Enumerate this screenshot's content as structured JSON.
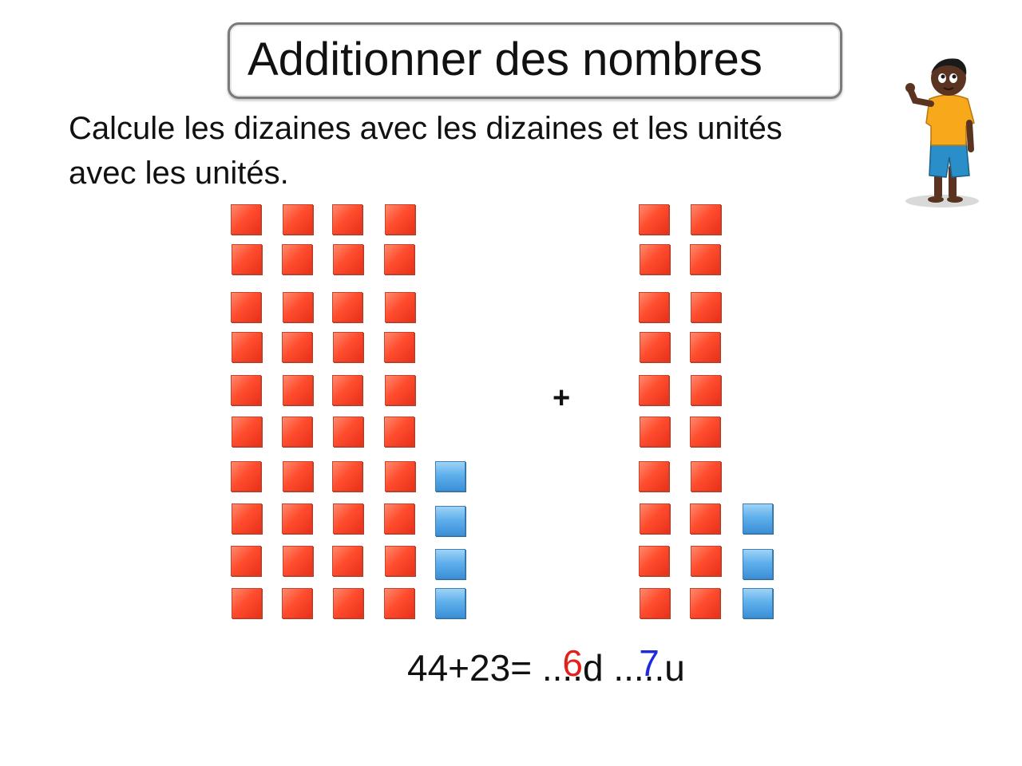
{
  "title": "Additionner des nombres",
  "instruction_lines": [
    "Calcule les dizaines avec les dizaines et les unités",
    "avec les unités."
  ],
  "operator": "+",
  "equation": {
    "expression": "44+23=",
    "tens_blank": "....d",
    "tens_answer": "6",
    "units_blank": ".....u",
    "units_answer": "7"
  },
  "colors": {
    "tens_answer": "#e3201b",
    "units_answer": "#1f2ae0",
    "ten_block": "#ff4d2e",
    "unit_block": "#5fb0ec"
  },
  "first_number": {
    "value": 44,
    "tens": 4,
    "units": 4
  },
  "second_number": {
    "value": 23,
    "tens": 2,
    "units": 3
  },
  "character_icon": "boy-waving-illustration"
}
